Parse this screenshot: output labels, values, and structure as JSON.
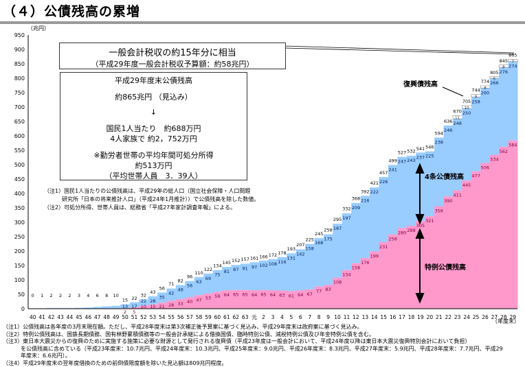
{
  "title": "（４）公債残高の累増",
  "box_revenue": {
    "line1": "一般会計税収の約15年分に相当",
    "line2": "（平成29年度一般会計税収予算額：約58兆円）"
  },
  "box_debt": {
    "l1": "平成29年度末公債残高",
    "l2": "約865兆円 （見込み）",
    "arrow": "↓",
    "l3": "国民1人当たり　約688万円",
    "l4": "4人家族で 約2，752万円",
    "l5": "※勤労者世帯の平均年間可処分所得",
    "l6": "約513万円",
    "l7": "（平均世帯人員　3．39人）"
  },
  "box_notes": [
    "（注1）国民1人当たりの公債残高は、平成29年の総人口（国立社会保障・人口問題",
    "研究所「日本の将来推計人口」（平成24年1月推計））で公債残高を除した数値。",
    "（注2）可処分所得、世帯人員は、総務省「平成27年家計調査年報」による。"
  ],
  "annotations": {
    "fukko": "復興債残高",
    "kensetsu": "4条公債残高",
    "tokurei": "特例公債残高"
  },
  "footnotes": [
    "（注1）公債残高は各年度の3月末現在額。ただし、平成28年度末は第3次補正後予算案に基づく見込み、平成29年度末は政府案に基づく見込み。",
    "（注2）特例公債残高は、国鉄長期債務、国有林野累積債務等の一般会計承継による借換国債、臨時特別公債、減税特例公債及び年金特例公債を含む。",
    "（注3）東日本大震災からの復興のために実施する施策に必要な財源として発行される復興債（平成23年度は一般会計において、平成24年度以降は東日本大震災復興特別会計において負担）",
    "を公債残高に含めている（平成23年度末：10.7兆円、平成24年度末：10.3兆円、平成25年度末：9.0兆円、平成26年度末：8.3兆円、平成27年度末：5.9兆円、平成28年度末：7.7兆円、平成29",
    "年度末：6.6兆円）。",
    "（注4）平成29年度末の翌年度借換のための前倒債限度額を除いた見込額は809兆円程度。"
  ],
  "colors": {
    "kensetsu": "#99ccff",
    "tokurei": "#ff99cc",
    "fukko": "#ffffff"
  },
  "chart_data": {
    "type": "bar",
    "stacked": true,
    "ylabel": "（兆円）",
    "xlabel": "（年度末）",
    "ylim": [
      0,
      950
    ],
    "yticks": [
      0,
      50,
      100,
      150,
      200,
      250,
      300,
      350,
      400,
      450,
      500,
      550,
      600,
      650,
      700,
      750,
      800,
      850,
      900,
      950
    ],
    "categories": [
      "40",
      "41",
      "42",
      "43",
      "44",
      "45",
      "46",
      "47",
      "48",
      "49",
      "50",
      "51",
      "52",
      "53",
      "54",
      "55",
      "56",
      "57",
      "58",
      "59",
      "60",
      "61",
      "62",
      "63",
      "元",
      "2",
      "3",
      "4",
      "5",
      "6",
      "7",
      "8",
      "9",
      "10",
      "11",
      "12",
      "13",
      "14",
      "15",
      "16",
      "17",
      "18",
      "19",
      "20",
      "21",
      "22",
      "23",
      "24",
      "25",
      "26",
      "27",
      "28",
      "29"
    ],
    "totals": [
      0,
      1,
      2,
      2,
      2,
      3,
      4,
      6,
      8,
      10,
      15,
      22,
      32,
      43,
      56,
      71,
      82,
      96,
      110,
      122,
      134,
      145,
      152,
      157,
      161,
      166,
      172,
      178,
      193,
      207,
      225,
      245,
      258,
      295,
      332,
      368,
      392,
      421,
      457,
      499,
      527,
      532,
      541,
      546,
      594,
      636,
      670,
      705,
      744,
      774,
      805,
      845,
      865
    ],
    "series": [
      {
        "name": "特例公債残高",
        "values": [
          0,
          0,
          0,
          0,
          0,
          0,
          0,
          0,
          0,
          0,
          2,
          5,
          10,
          15,
          21,
          28,
          33,
          40,
          47,
          53,
          59,
          64,
          65,
          65,
          64,
          65,
          64,
          63,
          61,
          64,
          67,
          77,
          83,
          108,
          134,
          158,
          176,
          199,
          231,
          258,
          280,
          288,
          305,
          321,
          356,
          390,
          411,
          445,
          477,
          506,
          534,
          562,
          584
        ]
      },
      {
        "name": "4条公債残高",
        "values": [
          0,
          1,
          2,
          2,
          2,
          3,
          4,
          6,
          8,
          10,
          13,
          17,
          22,
          28,
          35,
          42,
          49,
          56,
          63,
          69,
          75,
          81,
          87,
          91,
          97,
          102,
          108,
          116,
          131,
          142,
          158,
          168,
          175,
          187,
          197,
          209,
          216,
          222,
          226,
          241,
          247,
          243,
          237,
          225,
          238,
          246,
          248,
          250,
          258,
          260,
          266,
          276,
          274
        ]
      },
      {
        "name": "復興債残高",
        "values": [
          0,
          0,
          0,
          0,
          0,
          0,
          0,
          0,
          0,
          0,
          0,
          0,
          0,
          0,
          0,
          0,
          0,
          0,
          0,
          0,
          0,
          0,
          0,
          0,
          0,
          0,
          0,
          0,
          0,
          0,
          0,
          0,
          0,
          0,
          0,
          0,
          0,
          0,
          0,
          0,
          0,
          0,
          0,
          0,
          0,
          0,
          11,
          10,
          9,
          8,
          6,
          8,
          7
        ]
      }
    ]
  }
}
